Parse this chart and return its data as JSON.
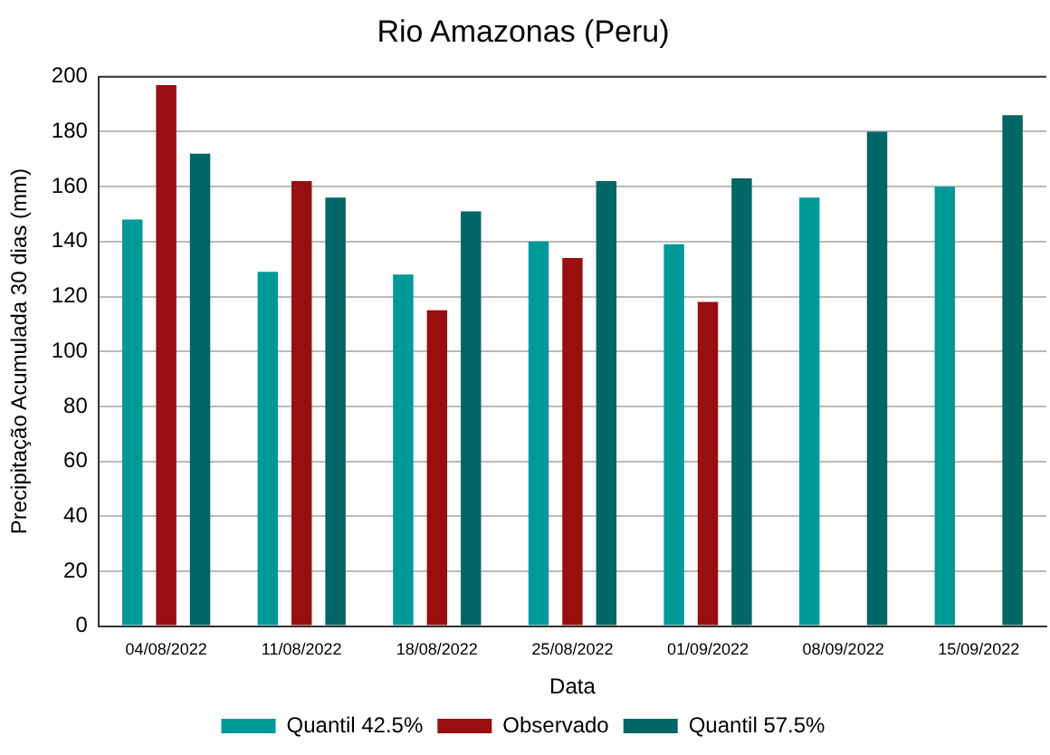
{
  "chart_data": {
    "type": "bar",
    "title": "Rio Amazonas (Peru)",
    "xlabel": "Data",
    "ylabel": "Precipitação Acumulada 30 dias (mm)",
    "categories": [
      "04/08/2022",
      "11/08/2022",
      "18/08/2022",
      "25/08/2022",
      "01/09/2022",
      "08/09/2022",
      "15/09/2022"
    ],
    "series": [
      {
        "name": "Quantil 42.5%",
        "color": "#009999",
        "values": [
          148,
          129,
          128,
          140,
          139,
          156,
          160
        ]
      },
      {
        "name": "Observado",
        "color": "#990f0f",
        "values": [
          197,
          162,
          115,
          134,
          118,
          null,
          null
        ]
      },
      {
        "name": "Quantil 57.5%",
        "color": "#006666",
        "values": [
          172,
          156,
          151,
          162,
          163,
          180,
          186
        ]
      }
    ],
    "ylim": [
      0,
      200
    ],
    "yticks": [
      0,
      20,
      40,
      60,
      80,
      100,
      120,
      140,
      160,
      180,
      200
    ],
    "grid": "y",
    "legend": "bottom"
  }
}
